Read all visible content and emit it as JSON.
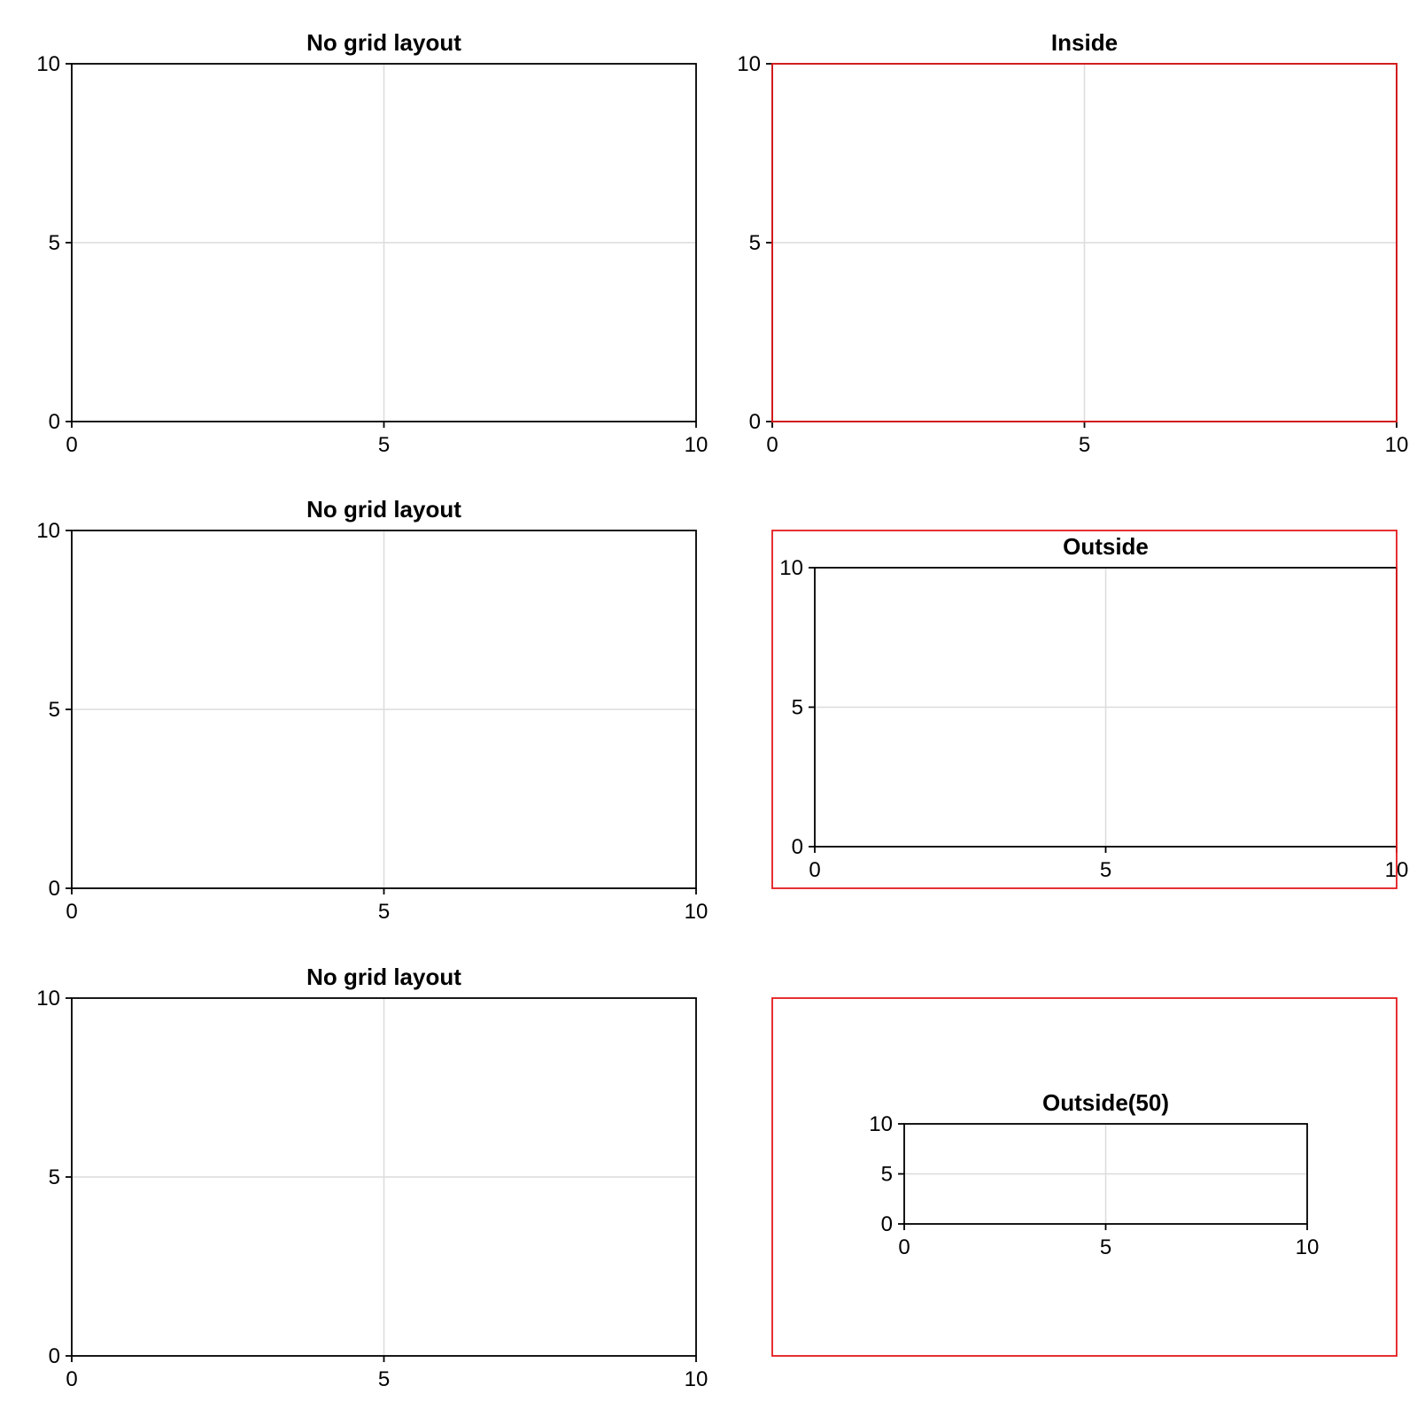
{
  "chart_data": [
    {
      "type": "line",
      "title": "No grid layout",
      "xlim": [
        0,
        10
      ],
      "ylim": [
        0,
        10
      ],
      "xticks": [
        0,
        5,
        10
      ],
      "yticks": [
        0,
        5,
        10
      ],
      "xlabel": "",
      "ylabel": "",
      "grid": true,
      "series": []
    },
    {
      "type": "line",
      "title": "Inside",
      "xlim": [
        0,
        10
      ],
      "ylim": [
        0,
        10
      ],
      "xticks": [
        0,
        5,
        10
      ],
      "yticks": [
        0,
        5,
        10
      ],
      "xlabel": "",
      "ylabel": "",
      "grid": true,
      "series": [],
      "outline_color": "#e41a1c"
    },
    {
      "type": "line",
      "title": "No grid layout",
      "xlim": [
        0,
        10
      ],
      "ylim": [
        0,
        10
      ],
      "xticks": [
        0,
        5,
        10
      ],
      "yticks": [
        0,
        5,
        10
      ],
      "xlabel": "",
      "ylabel": "",
      "grid": true,
      "series": []
    },
    {
      "type": "line",
      "title": "Outside",
      "xlim": [
        0,
        10
      ],
      "ylim": [
        0,
        10
      ],
      "xticks": [
        0,
        5,
        10
      ],
      "yticks": [
        0,
        5,
        10
      ],
      "xlabel": "",
      "ylabel": "",
      "grid": true,
      "series": [],
      "outline_color": "#e41a1c"
    },
    {
      "type": "line",
      "title": "No grid layout",
      "xlim": [
        0,
        10
      ],
      "ylim": [
        0,
        10
      ],
      "xticks": [
        0,
        5,
        10
      ],
      "yticks": [
        0,
        5,
        10
      ],
      "xlabel": "",
      "ylabel": "",
      "grid": true,
      "series": []
    },
    {
      "type": "line",
      "title": "Outside(50)",
      "xlim": [
        0,
        10
      ],
      "ylim": [
        0,
        10
      ],
      "xticks": [
        0,
        5,
        10
      ],
      "yticks": [
        0,
        5,
        10
      ],
      "xlabel": "",
      "ylabel": "",
      "grid": true,
      "series": [],
      "outline_color": "#e41a1c"
    }
  ]
}
